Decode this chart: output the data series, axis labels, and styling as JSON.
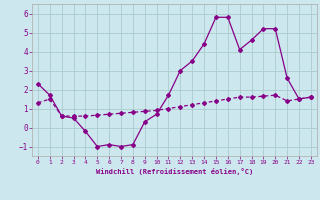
{
  "xlabel": "Windchill (Refroidissement éolien,°C)",
  "bg_color": "#cce8ee",
  "line_color": "#880088",
  "grid_color": "#aacccc",
  "xlim": [
    -0.5,
    23.5
  ],
  "ylim": [
    -1.5,
    6.5
  ],
  "yticks": [
    -1,
    0,
    1,
    2,
    3,
    4,
    5,
    6
  ],
  "xticks": [
    0,
    1,
    2,
    3,
    4,
    5,
    6,
    7,
    8,
    9,
    10,
    11,
    12,
    13,
    14,
    15,
    16,
    17,
    18,
    19,
    20,
    21,
    22,
    23
  ],
  "line1_x": [
    0,
    1,
    2,
    3,
    4,
    5,
    6,
    7,
    8,
    9,
    10,
    11,
    12,
    13,
    14,
    15,
    16,
    17,
    18,
    19,
    20,
    21,
    22,
    23
  ],
  "line1_y": [
    2.3,
    1.7,
    0.6,
    0.5,
    -0.2,
    -1.0,
    -0.9,
    -1.0,
    -0.9,
    0.3,
    0.7,
    1.7,
    3.0,
    3.5,
    4.4,
    5.8,
    5.8,
    4.1,
    4.6,
    5.2,
    5.2,
    2.6,
    1.5,
    1.6
  ],
  "line2_x": [
    0,
    1,
    2,
    3,
    4,
    5,
    6,
    7,
    8,
    9,
    10,
    11,
    12,
    13,
    14,
    15,
    16,
    17,
    18,
    19,
    20,
    21,
    22,
    23
  ],
  "line2_y": [
    1.3,
    1.5,
    0.6,
    0.6,
    0.6,
    0.65,
    0.7,
    0.75,
    0.8,
    0.85,
    0.9,
    1.0,
    1.1,
    1.2,
    1.3,
    1.4,
    1.5,
    1.6,
    1.6,
    1.65,
    1.7,
    1.4,
    1.5,
    1.6
  ]
}
